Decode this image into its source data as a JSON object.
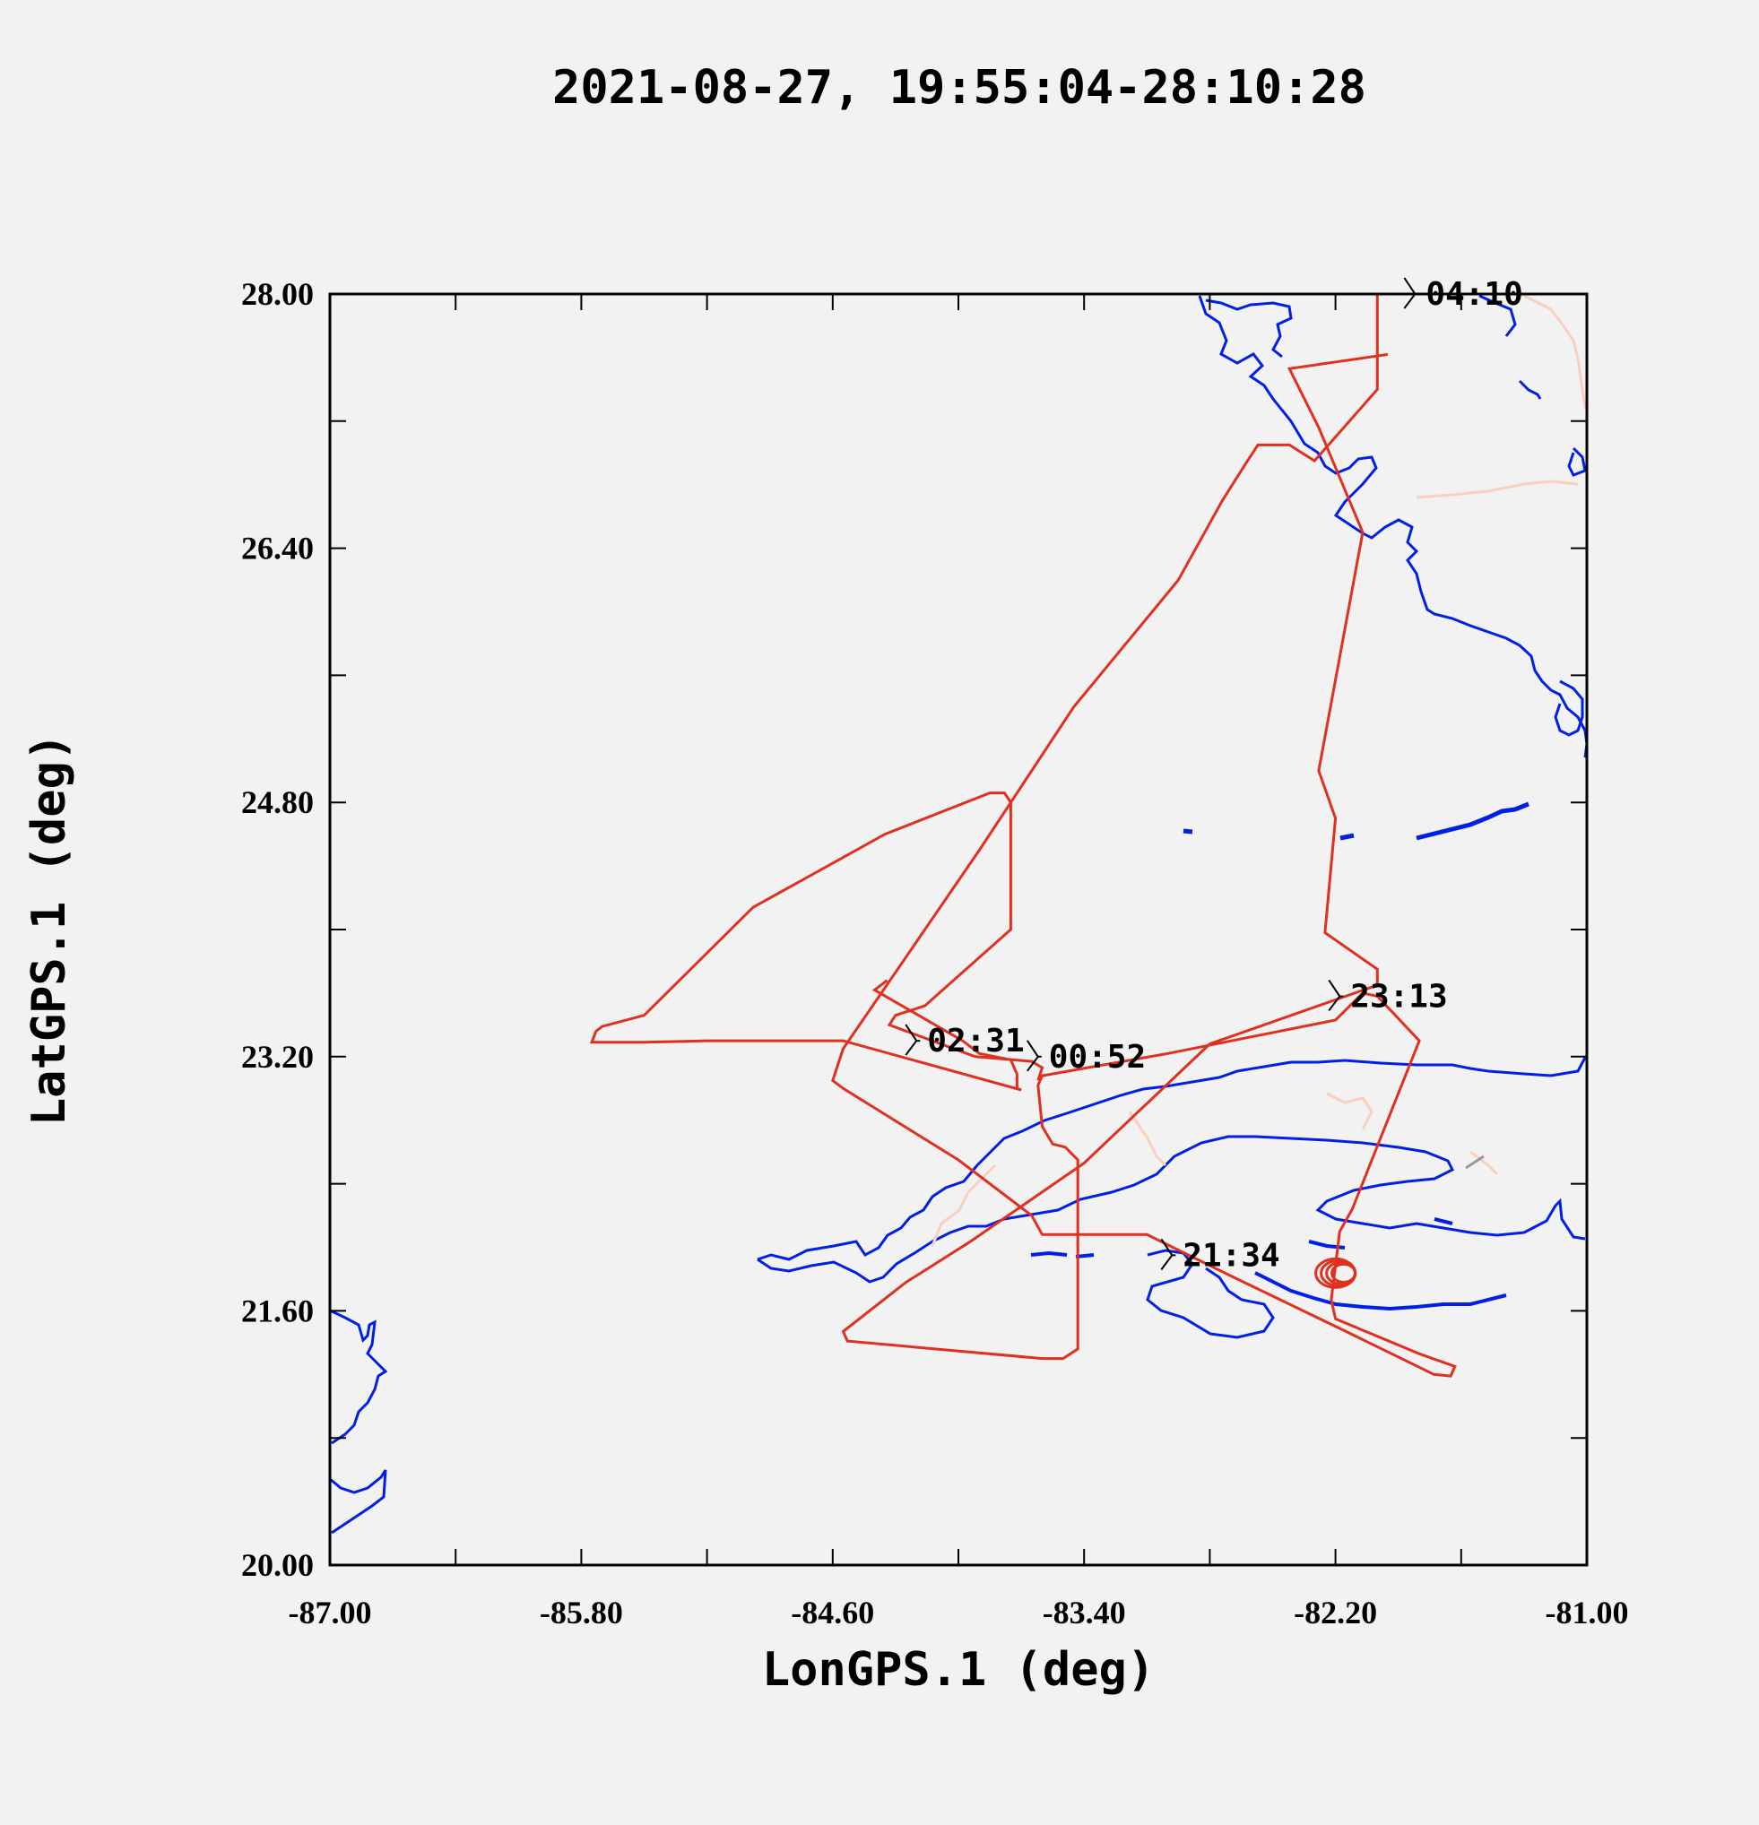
{
  "chart_data": {
    "type": "line",
    "title": "2021-08-27, 19:55:04-28:10:28",
    "xlabel": "LonGPS.1 (deg)",
    "ylabel": "LatGPS.1 (deg)",
    "xlim": [
      -87.0,
      -81.0
    ],
    "ylim": [
      20.0,
      28.0
    ],
    "x_tick_labels": [
      "-87.00",
      "-85.80",
      "-84.60",
      "-83.40",
      "-82.20",
      "-81.00"
    ],
    "y_tick_labels": [
      "20.00",
      "21.60",
      "23.20",
      "24.80",
      "26.40",
      "28.00"
    ],
    "x_ticks": [
      -87.0,
      -86.4,
      -85.8,
      -85.2,
      -84.6,
      -84.0,
      -83.4,
      -82.8,
      -82.2,
      -81.6,
      -81.0
    ],
    "y_ticks": [
      20.0,
      20.8,
      21.6,
      22.4,
      23.2,
      24.0,
      24.8,
      25.6,
      26.4,
      27.2,
      28.0
    ],
    "grid": false,
    "colors": {
      "track": "#e03020",
      "coast": "#0020e8",
      "border": "#f0c8b8",
      "background": "#f2f2f2"
    },
    "annotations": [
      {
        "text": "02:31",
        "lon": -84.2,
        "lat": 23.3
      },
      {
        "text": "00:52",
        "lon": -83.62,
        "lat": 23.2
      },
      {
        "text": "23:13",
        "lon": -82.18,
        "lat": 23.58
      },
      {
        "text": "21:34",
        "lon": -82.98,
        "lat": 21.95
      },
      {
        "text": "04:10",
        "lon": -81.82,
        "lat": 28.0
      }
    ],
    "series": [
      {
        "values": [
          [
            -81.95,
            27.62
          ],
          [
            -82.42,
            27.53
          ],
          [
            -82.28,
            27.16
          ],
          [
            -82.07,
            26.5
          ],
          [
            -82.28,
            25.0
          ],
          [
            -82.2,
            24.7
          ],
          [
            -82.25,
            23.98
          ],
          [
            -82.0,
            23.75
          ],
          [
            -82.0,
            23.65
          ],
          [
            -82.8,
            23.28
          ],
          [
            -83.4,
            22.53
          ],
          [
            -83.95,
            22.03
          ],
          [
            -84.25,
            21.78
          ],
          [
            -84.55,
            21.47
          ],
          [
            -84.53,
            21.41
          ],
          [
            -83.6,
            21.3
          ],
          [
            -83.5,
            21.3
          ],
          [
            -83.43,
            21.36
          ],
          [
            -83.43,
            22.55
          ],
          [
            -83.49,
            22.63
          ],
          [
            -83.55,
            22.65
          ],
          [
            -83.6,
            22.76
          ],
          [
            -83.62,
            23.02
          ],
          [
            -83.6,
            23.08
          ],
          [
            -83.0,
            23.22
          ],
          [
            -82.2,
            23.43
          ],
          [
            -82.07,
            23.6
          ],
          [
            -82.0,
            23.58
          ],
          [
            -81.8,
            23.3
          ],
          [
            -82.12,
            22.24
          ],
          [
            -82.18,
            22.1
          ],
          [
            -82.22,
            21.67
          ],
          [
            -82.2,
            21.55
          ],
          [
            -81.8,
            21.33
          ],
          [
            -81.63,
            21.25
          ],
          [
            -81.65,
            21.19
          ],
          [
            -81.73,
            21.2
          ],
          [
            -82.15,
            21.47
          ],
          [
            -82.7,
            21.82
          ],
          [
            -83.1,
            22.08
          ],
          [
            -83.2,
            22.08
          ],
          [
            -83.5,
            22.08
          ],
          [
            -83.6,
            22.08
          ],
          [
            -83.65,
            22.2
          ],
          [
            -84.0,
            22.55
          ],
          [
            -84.55,
            23.0
          ],
          [
            -84.6,
            23.05
          ],
          [
            -84.55,
            23.25
          ],
          [
            -83.9,
            24.5
          ],
          [
            -83.45,
            25.4
          ],
          [
            -82.95,
            26.2
          ],
          [
            -82.74,
            26.7
          ],
          [
            -82.62,
            26.95
          ],
          [
            -82.57,
            27.05
          ],
          [
            -82.42,
            27.05
          ],
          [
            -82.3,
            26.95
          ],
          [
            -82.0,
            27.4
          ],
          [
            -82.0,
            28.0
          ]
        ]
      },
      {
        "values": [
          [
            -84.34,
            23.68
          ],
          [
            -84.4,
            23.62
          ],
          [
            -83.98,
            23.3
          ],
          [
            -83.9,
            23.22
          ],
          [
            -83.75,
            23.18
          ],
          [
            -83.72,
            23.09
          ],
          [
            -83.72,
            23.0
          ],
          [
            -83.7,
            22.99
          ],
          [
            -84.55,
            23.3
          ],
          [
            -84.6,
            23.3
          ],
          [
            -85.2,
            23.3
          ],
          [
            -85.5,
            23.29
          ],
          [
            -85.75,
            23.29
          ],
          [
            -85.73,
            23.36
          ],
          [
            -85.7,
            23.39
          ],
          [
            -85.5,
            23.46
          ],
          [
            -84.98,
            24.14
          ],
          [
            -84.35,
            24.6
          ],
          [
            -83.85,
            24.86
          ],
          [
            -83.78,
            24.86
          ],
          [
            -83.75,
            24.8
          ],
          [
            -83.75,
            24.0
          ],
          [
            -84.16,
            23.52
          ],
          [
            -84.3,
            23.46
          ],
          [
            -84.33,
            23.4
          ],
          [
            -83.92,
            23.2
          ],
          [
            -83.65,
            23.17
          ],
          [
            -83.6,
            23.13
          ],
          [
            -83.62,
            23.05
          ]
        ]
      }
    ]
  },
  "map_features": {
    "legend": "none",
    "coastlines": "Florida, Cuba, Yucatan",
    "holding_pattern": {
      "lon": -82.2,
      "lat": 21.95
    }
  }
}
